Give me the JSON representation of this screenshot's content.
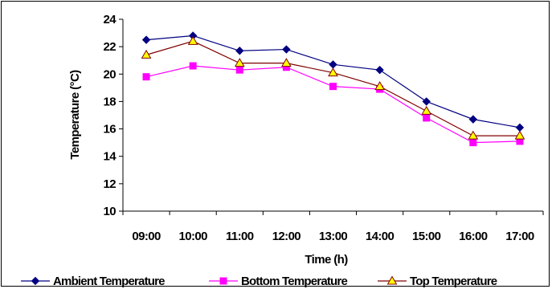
{
  "chart_data": {
    "type": "line",
    "xlabel": "Time (h)",
    "ylabel": "Temperature (°C)",
    "ylim": [
      10,
      24
    ],
    "y_ticks": [
      "10",
      "12",
      "14",
      "16",
      "18",
      "20",
      "22",
      "24"
    ],
    "categories": [
      "09:00",
      "10:00",
      "11:00",
      "12:00",
      "13:00",
      "14:00",
      "15:00",
      "16:00",
      "17:00"
    ],
    "grid": false,
    "legend_position": "bottom",
    "series": [
      {
        "name": "Ambient Temperature",
        "color": "#000080",
        "marker": "diamond",
        "marker_fill": "#000080",
        "values": [
          22.5,
          22.8,
          21.7,
          21.8,
          20.7,
          20.3,
          18.0,
          16.7,
          16.1
        ]
      },
      {
        "name": "Bottom Temperature",
        "color": "#ff00ff",
        "marker": "square",
        "marker_fill": "#ff00ff",
        "values": [
          19.8,
          20.6,
          20.3,
          20.5,
          19.1,
          18.9,
          16.8,
          15.0,
          15.1
        ]
      },
      {
        "name": "Top Temperature",
        "color": "#800000",
        "marker": "triangle",
        "marker_fill": "#ffff00",
        "values": [
          21.4,
          22.4,
          20.8,
          20.8,
          20.1,
          19.1,
          17.3,
          15.5,
          15.5
        ]
      }
    ]
  }
}
